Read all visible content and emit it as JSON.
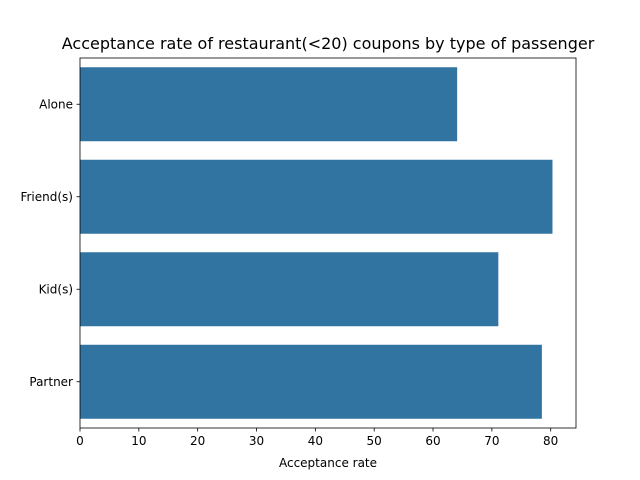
{
  "chart_data": {
    "type": "bar",
    "orientation": "horizontal",
    "title": "Acceptance rate of restaurant(<20) coupons by type of passenger",
    "xlabel": "Acceptance rate",
    "ylabel": "",
    "categories": [
      "Alone",
      "Friend(s)",
      "Kid(s)",
      "Partner"
    ],
    "values": [
      64.1,
      80.3,
      71.1,
      78.5
    ],
    "xlim": [
      0,
      84.3
    ],
    "xticks": [
      0,
      10,
      20,
      30,
      40,
      50,
      60,
      70,
      80
    ],
    "bar_color": "#3274a1",
    "grid": false,
    "legend": false
  }
}
